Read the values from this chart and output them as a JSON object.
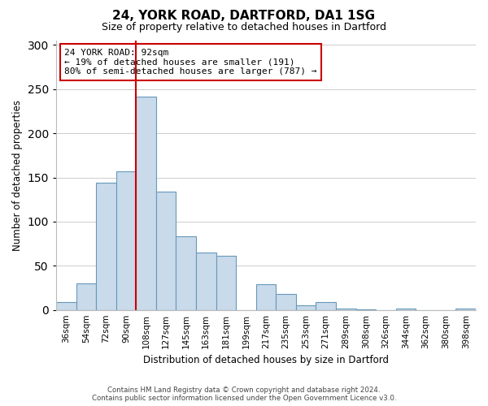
{
  "title": "24, YORK ROAD, DARTFORD, DA1 1SG",
  "subtitle": "Size of property relative to detached houses in Dartford",
  "xlabel": "Distribution of detached houses by size in Dartford",
  "ylabel": "Number of detached properties",
  "bin_labels": [
    "36sqm",
    "54sqm",
    "72sqm",
    "90sqm",
    "108sqm",
    "127sqm",
    "145sqm",
    "163sqm",
    "181sqm",
    "199sqm",
    "217sqm",
    "235sqm",
    "253sqm",
    "271sqm",
    "289sqm",
    "308sqm",
    "326sqm",
    "344sqm",
    "362sqm",
    "380sqm",
    "398sqm"
  ],
  "bar_values": [
    9,
    30,
    144,
    157,
    242,
    134,
    83,
    65,
    61,
    0,
    29,
    18,
    5,
    9,
    2,
    1,
    0,
    2,
    0,
    0,
    2
  ],
  "bar_color": "#c9daea",
  "bar_edge_color": "#6699bb",
  "vline_x_index": 3,
  "vline_color": "#cc0000",
  "annotation_line1": "24 YORK ROAD: 92sqm",
  "annotation_line2": "← 19% of detached houses are smaller (191)",
  "annotation_line3": "80% of semi-detached houses are larger (787) →",
  "annotation_box_color": "#ffffff",
  "annotation_box_edge_color": "#cc0000",
  "ylim": [
    0,
    305
  ],
  "yticks": [
    0,
    50,
    100,
    150,
    200,
    250,
    300
  ],
  "footer_line1": "Contains HM Land Registry data © Crown copyright and database right 2024.",
  "footer_line2": "Contains public sector information licensed under the Open Government Licence v3.0.",
  "background_color": "#ffffff",
  "grid_color": "#cccccc"
}
